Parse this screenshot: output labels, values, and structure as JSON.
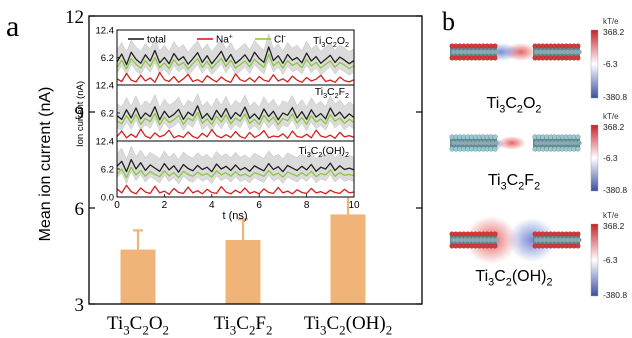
{
  "panels": {
    "a": "a",
    "b": "b"
  },
  "chart_data": [
    {
      "type": "bar",
      "panel": "a",
      "ylabel": "Mean ion current (nA)",
      "xlabel": "",
      "ylim": [
        3,
        12
      ],
      "yticks": [
        "3",
        "6",
        "9",
        "12"
      ],
      "categories": [
        {
          "base": "Ti",
          "sub1": "3",
          "mid": "C",
          "sub2": "2",
          "tail": "O",
          "sub3": "2"
        },
        {
          "base": "Ti",
          "sub1": "3",
          "mid": "C",
          "sub2": "2",
          "tail": "F",
          "sub3": "2"
        },
        {
          "base": "Ti",
          "sub1": "3",
          "mid": "C",
          "sub2": "2",
          "tail": "(OH)",
          "sub3": "2"
        }
      ],
      "values": [
        4.7,
        5.0,
        5.8
      ],
      "errors": [
        0.6,
        0.65,
        0.75
      ],
      "bar_color": "#F0B478"
    },
    {
      "type": "line",
      "panel": "a-inset",
      "xlabel": "t (ns)",
      "ylabel": "Ion current (nA)",
      "xlim": [
        0,
        10
      ],
      "xticks": [
        "0",
        "2",
        "4",
        "6",
        "8",
        "10"
      ],
      "ylim": [
        0,
        12.4
      ],
      "yticks": [
        "0.0",
        "6.2",
        "12.4"
      ],
      "legend": [
        {
          "label": "total",
          "color": "#222222"
        },
        {
          "label": "Na",
          "sup": "+",
          "color": "#D42020"
        },
        {
          "label": "Cl",
          "sup": "-",
          "color": "#8DC63F"
        }
      ],
      "subpanels": [
        {
          "label": {
            "base": "Ti",
            "sub1": "3",
            "mid": "C",
            "sub2": "2",
            "tail": "O",
            "sub3": "2"
          },
          "x": [
            0,
            0.2,
            0.4,
            0.6,
            0.8,
            1,
            1.2,
            1.4,
            1.6,
            1.8,
            2,
            2.2,
            2.4,
            2.6,
            2.8,
            3,
            3.2,
            3.4,
            3.6,
            3.8,
            4,
            4.2,
            4.4,
            4.6,
            4.8,
            5,
            5.2,
            5.4,
            5.6,
            5.8,
            6,
            6.2,
            6.4,
            6.6,
            6.8,
            7,
            7.2,
            7.4,
            7.6,
            7.8,
            8,
            8.2,
            8.4,
            8.6,
            8.8,
            9,
            9.2,
            9.4,
            9.6,
            9.8,
            10
          ],
          "total": [
            5.2,
            7.0,
            4.6,
            7.4,
            5.8,
            4.9,
            6.8,
            5.4,
            7.8,
            5.0,
            6.2,
            4.8,
            7.1,
            5.6,
            6.4,
            4.7,
            5.9,
            7.3,
            5.1,
            6.6,
            4.8,
            6.1,
            7.6,
            5.3,
            6.9,
            4.9,
            5.7,
            6.8,
            5.2,
            7.4,
            6.0,
            5.1,
            8.6,
            5.5,
            6.6,
            4.9,
            6.9,
            5.6,
            6.2,
            5.0,
            7.2,
            5.4,
            6.4,
            4.9,
            5.8,
            6.7,
            5.1,
            6.3,
            5.6,
            4.8,
            5.5
          ],
          "na": [
            1.4,
            0.8,
            2.6,
            1.1,
            0.7,
            2.2,
            0.9,
            1.6,
            0.6,
            2.8,
            1.2,
            0.8,
            1.9,
            0.6,
            1.4,
            2.4,
            0.8,
            1.2,
            0.6,
            2.1,
            1.3,
            0.7,
            1.8,
            1.0,
            0.6,
            2.5,
            1.2,
            0.8,
            1.6,
            0.7,
            1.9,
            1.1,
            0.8,
            2.3,
            0.9,
            1.4,
            0.7,
            2.0,
            1.1,
            0.6,
            1.7,
            0.9,
            1.3,
            2.2,
            0.8,
            1.1,
            0.6,
            1.8,
            1.0,
            0.7,
            1.2
          ],
          "cl": [
            3.9,
            5.6,
            3.6,
            5.9,
            4.7,
            3.8,
            5.5,
            4.2,
            6.2,
            3.9,
            5.0,
            3.7,
            5.7,
            4.4,
            5.1,
            3.6,
            4.8,
            5.9,
            4.0,
            5.3,
            3.7,
            4.9,
            6.0,
            4.2,
            5.6,
            3.8,
            4.6,
            5.4,
            4.1,
            5.8,
            4.8,
            4.0,
            6.9,
            4.3,
            5.3,
            3.8,
            5.5,
            4.4,
            5.0,
            3.9,
            5.8,
            4.3,
            5.1,
            3.8,
            4.7,
            5.4,
            4.0,
            5.1,
            4.5,
            3.7,
            4.4
          ],
          "band_hi": [
            7.8,
            9.6,
            7.4,
            10.1,
            8.6,
            7.6,
            9.4,
            8.1,
            10.4,
            7.7,
            9.0,
            7.5,
            9.8,
            8.3,
            9.1,
            7.4,
            8.7,
            10.0,
            7.9,
            9.3,
            7.5,
            8.9,
            10.3,
            8.0,
            9.6,
            7.6,
            8.5,
            9.4,
            7.9,
            10.1,
            8.8,
            7.8,
            11.6,
            8.2,
            9.3,
            7.6,
            9.6,
            8.3,
            9.0,
            7.7,
            9.9,
            8.1,
            9.1,
            7.6,
            8.6,
            9.4,
            7.8,
            9.0,
            8.4,
            7.5,
            8.2
          ],
          "band_lo": [
            2.6,
            4.4,
            2.2,
            4.7,
            3.2,
            2.4,
            4.2,
            2.8,
            5.0,
            2.5,
            3.6,
            2.3,
            4.4,
            3.0,
            3.8,
            2.2,
            3.3,
            4.6,
            2.6,
            4.0,
            2.3,
            3.5,
            4.8,
            2.7,
            4.3,
            2.4,
            3.1,
            4.1,
            2.6,
            4.6,
            3.4,
            2.5,
            5.6,
            2.9,
            4.0,
            2.4,
            4.2,
            3.0,
            3.5,
            2.5,
            4.5,
            2.8,
            3.8,
            2.3,
            3.2,
            4.1,
            2.5,
            3.7,
            3.0,
            2.2,
            2.9
          ]
        },
        {
          "label": {
            "base": "Ti",
            "sub1": "3",
            "mid": "C",
            "sub2": "2",
            "tail": "F",
            "sub3": "2"
          },
          "x": [
            0,
            0.2,
            0.4,
            0.6,
            0.8,
            1,
            1.2,
            1.4,
            1.6,
            1.8,
            2,
            2.2,
            2.4,
            2.6,
            2.8,
            3,
            3.2,
            3.4,
            3.6,
            3.8,
            4,
            4.2,
            4.4,
            4.6,
            4.8,
            5,
            5.2,
            5.4,
            5.6,
            5.8,
            6,
            6.2,
            6.4,
            6.6,
            6.8,
            7,
            7.2,
            7.4,
            7.6,
            7.8,
            8,
            8.2,
            8.4,
            8.6,
            8.8,
            9,
            9.2,
            9.4,
            9.6,
            9.8,
            10
          ],
          "total": [
            5.6,
            4.8,
            6.9,
            5.1,
            7.3,
            4.9,
            6.2,
            5.4,
            7.6,
            4.7,
            6.6,
            5.2,
            5.9,
            7.0,
            4.8,
            6.4,
            5.6,
            7.8,
            5.0,
            6.1,
            4.7,
            6.8,
            5.3,
            7.2,
            4.9,
            6.3,
            5.5,
            7.5,
            5.0,
            6.0,
            4.8,
            7.1,
            5.4,
            6.6,
            4.7,
            6.2,
            5.7,
            7.4,
            5.1,
            6.5,
            4.8,
            6.9,
            5.3,
            6.1,
            4.9,
            7.3,
            5.5,
            6.4,
            5.0,
            6.0,
            5.2
          ],
          "na": [
            1.0,
            2.2,
            0.7,
            1.5,
            0.8,
            2.6,
            1.1,
            0.6,
            1.8,
            0.9,
            1.3,
            2.4,
            0.7,
            1.2,
            0.8,
            2.0,
            1.0,
            0.6,
            1.7,
            0.9,
            2.5,
            1.2,
            0.7,
            1.4,
            0.8,
            2.1,
            1.0,
            0.6,
            1.9,
            0.8,
            1.3,
            2.3,
            0.7,
            1.1,
            0.9,
            1.6,
            0.6,
            2.2,
            1.0,
            0.8,
            1.5,
            0.7,
            2.4,
            1.1,
            0.8,
            1.3,
            0.6,
            1.9,
            0.9,
            1.2,
            0.8
          ],
          "cl": [
            4.4,
            3.8,
            5.6,
            4.0,
            5.9,
            3.7,
            5.0,
            4.3,
            6.1,
            3.6,
            5.3,
            4.1,
            4.7,
            5.7,
            3.7,
            5.1,
            4.5,
            6.3,
            3.9,
            4.9,
            3.6,
            5.5,
            4.2,
            5.8,
            3.8,
            5.1,
            4.4,
            6.0,
            3.9,
            4.8,
            3.7,
            5.7,
            4.3,
            5.3,
            3.6,
            5.0,
            4.5,
            6.0,
            4.0,
            5.2,
            3.7,
            5.6,
            4.2,
            4.9,
            3.8,
            5.9,
            4.4,
            5.1,
            3.9,
            4.8,
            4.1
          ],
          "band_hi": [
            8.3,
            7.5,
            9.6,
            7.8,
            10.0,
            7.6,
            8.9,
            8.1,
            10.3,
            7.4,
            9.3,
            7.9,
            8.6,
            9.7,
            7.5,
            9.1,
            8.3,
            10.5,
            7.7,
            8.8,
            7.4,
            9.5,
            8.0,
            9.9,
            7.6,
            9.0,
            8.2,
            10.2,
            7.7,
            8.7,
            7.5,
            9.8,
            8.1,
            9.3,
            7.4,
            8.9,
            8.4,
            10.1,
            7.8,
            9.2,
            7.5,
            9.6,
            8.0,
            8.8,
            7.6,
            10.0,
            8.2,
            9.1,
            7.7,
            8.7,
            7.9
          ],
          "band_lo": [
            3.0,
            2.3,
            4.2,
            2.6,
            4.6,
            2.4,
            3.6,
            2.8,
            4.9,
            2.2,
            4.0,
            2.7,
            3.3,
            4.3,
            2.3,
            3.8,
            3.0,
            5.1,
            2.5,
            3.5,
            2.2,
            4.1,
            2.7,
            4.5,
            2.4,
            3.7,
            2.9,
            4.8,
            2.5,
            3.4,
            2.3,
            4.4,
            2.8,
            4.0,
            2.2,
            3.6,
            3.1,
            4.7,
            2.6,
            3.9,
            2.3,
            4.2,
            2.7,
            3.5,
            2.4,
            4.6,
            2.9,
            3.8,
            2.5,
            3.4,
            2.6
          ]
        },
        {
          "label": {
            "base": "Ti",
            "sub1": "3",
            "mid": "C",
            "sub2": "2",
            "tail": "(OH)",
            "sub3": "2"
          },
          "x": [
            0,
            0.2,
            0.4,
            0.6,
            0.8,
            1,
            1.2,
            1.4,
            1.6,
            1.8,
            2,
            2.2,
            2.4,
            2.6,
            2.8,
            3,
            3.2,
            3.4,
            3.6,
            3.8,
            4,
            4.2,
            4.4,
            4.6,
            4.8,
            5,
            5.2,
            5.4,
            5.6,
            5.8,
            6,
            6.2,
            6.4,
            6.6,
            6.8,
            7,
            7.2,
            7.4,
            7.6,
            7.8,
            8,
            8.2,
            8.4,
            8.6,
            8.8,
            9,
            9.2,
            9.4,
            9.6,
            9.8,
            10
          ],
          "total": [
            6.8,
            7.9,
            5.6,
            8.3,
            6.2,
            7.6,
            5.9,
            7.1,
            6.4,
            5.7,
            7.4,
            6.0,
            6.9,
            5.5,
            7.2,
            6.3,
            5.8,
            7.0,
            6.1,
            6.6,
            5.6,
            7.3,
            6.2,
            6.8,
            5.9,
            7.1,
            6.0,
            6.5,
            5.7,
            6.9,
            6.3,
            5.8,
            7.4,
            6.1,
            6.7,
            5.6,
            7.0,
            6.4,
            5.9,
            6.8,
            6.0,
            7.2,
            5.7,
            6.6,
            6.2,
            7.5,
            5.9,
            6.9,
            6.1,
            6.4,
            6.0
          ],
          "na": [
            1.8,
            0.9,
            2.6,
            1.2,
            0.7,
            2.0,
            1.1,
            0.8,
            2.4,
            0.9,
            1.3,
            0.6,
            1.9,
            1.0,
            0.8,
            2.2,
            0.9,
            1.4,
            0.7,
            1.7,
            1.0,
            0.8,
            2.3,
            1.1,
            0.7,
            1.5,
            0.9,
            2.0,
            0.8,
            1.2,
            0.7,
            1.8,
            1.0,
            0.8,
            2.1,
            0.9,
            1.3,
            0.7,
            1.6,
            1.0,
            0.8,
            1.9,
            0.9,
            1.2,
            0.7,
            1.5,
            1.0,
            0.8,
            1.7,
            0.9,
            1.1
          ],
          "cl": [
            5.0,
            6.2,
            4.3,
            6.6,
            4.9,
            5.9,
            4.6,
            5.6,
            5.0,
            4.5,
            5.8,
            4.7,
            5.4,
            4.3,
            5.7,
            5.0,
            4.6,
            5.5,
            4.8,
            5.2,
            4.4,
            5.8,
            4.9,
            5.4,
            4.6,
            5.6,
            4.7,
            5.1,
            4.5,
            5.4,
            5.0,
            4.6,
            5.9,
            4.8,
            5.3,
            4.4,
            5.5,
            5.1,
            4.6,
            5.4,
            4.7,
            5.7,
            4.5,
            5.2,
            4.9,
            6.0,
            4.6,
            5.4,
            4.8,
            5.0,
            4.7
          ],
          "band_hi": [
            9.6,
            10.8,
            8.4,
            11.2,
            9.0,
            10.4,
            8.7,
            9.9,
            9.2,
            8.5,
            10.2,
            8.8,
            9.7,
            8.3,
            10.0,
            9.1,
            8.6,
            9.8,
            8.9,
            9.4,
            8.4,
            10.1,
            9.0,
            9.6,
            8.7,
            9.9,
            8.8,
            9.3,
            8.5,
            9.7,
            9.1,
            8.6,
            10.2,
            8.9,
            9.5,
            8.4,
            9.8,
            9.2,
            8.7,
            9.6,
            8.8,
            10.0,
            8.5,
            9.4,
            9.0,
            10.3,
            8.7,
            9.7,
            8.9,
            9.2,
            8.8
          ],
          "band_lo": [
            4.2,
            5.3,
            3.0,
            5.7,
            3.6,
            5.0,
            3.3,
            4.5,
            3.8,
            3.1,
            4.8,
            3.4,
            4.3,
            2.9,
            4.6,
            3.7,
            3.2,
            4.4,
            3.5,
            4.0,
            3.0,
            4.7,
            3.6,
            4.2,
            3.3,
            4.5,
            3.4,
            3.9,
            3.1,
            4.3,
            3.7,
            3.2,
            4.8,
            3.5,
            4.1,
            3.0,
            4.4,
            3.8,
            3.3,
            4.2,
            3.4,
            4.6,
            3.1,
            4.0,
            3.6,
            4.9,
            3.3,
            4.3,
            3.5,
            3.8,
            3.4
          ]
        }
      ]
    },
    {
      "type": "heatmap",
      "panel": "b",
      "colorbar_unit": "kT/e",
      "colorbar_ticks": [
        "368.2",
        "-6.3",
        "-380.8"
      ],
      "colormap": [
        "#3B4FA0",
        "#FFFFFF",
        "#C8202A"
      ],
      "structures": [
        {
          "label": {
            "base": "Ti",
            "sub1": "3",
            "mid": "C",
            "sub2": "2",
            "tail": "O",
            "sub3": "2"
          },
          "end_atom": "#D23A3A"
        },
        {
          "label": {
            "base": "Ti",
            "sub1": "3",
            "mid": "C",
            "sub2": "2",
            "tail": "F",
            "sub3": "2"
          },
          "end_atom": "#8FCBD3"
        },
        {
          "label": {
            "base": "Ti",
            "sub1": "3",
            "mid": "C",
            "sub2": "2",
            "tail": "(OH)",
            "sub3": "2"
          },
          "end_atom": "#D23A3A"
        }
      ]
    }
  ]
}
